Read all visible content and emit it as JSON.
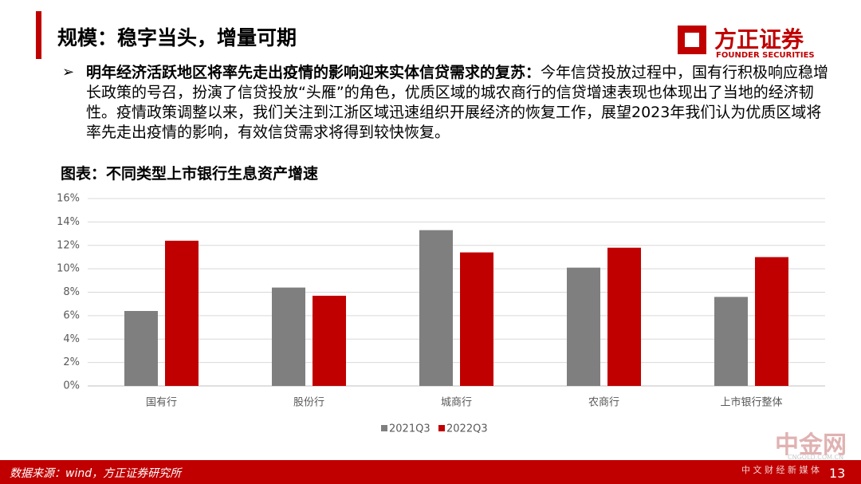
{
  "header": {
    "title": "规模：稳字当头，增量可期",
    "logo_name": "方正证券",
    "logo_sub": "FOUNDER SECURITIES"
  },
  "bullet": {
    "lead": "明年经济活跃地区将率先走出疫情的影响迎来实体信贷需求的复苏：",
    "text": "今年信贷投放过程中，国有行积极响应稳增长政策的号召，扮演了信贷投放“头雁”的角色，优质区域的城农商行的信贷增速表现也体现出了当地的经济韧性。疫情政策调整以来，我们关注到江浙区域迅速组织开展经济的恢复工作，展望2023年我们认为优质区域将率先走出疫情的影响，有效信贷需求将得到较快恢复。"
  },
  "chart_data": {
    "type": "bar",
    "title": "图表：不同类型上市银行生息资产增速",
    "categories": [
      "国有行",
      "股份行",
      "城商行",
      "农商行",
      "上市银行整体"
    ],
    "series": [
      {
        "name": "2021Q3",
        "color": "#7f7f7f",
        "values": [
          6.4,
          8.4,
          13.3,
          10.1,
          7.6
        ]
      },
      {
        "name": "2022Q3",
        "color": "#c00000",
        "values": [
          12.4,
          7.7,
          11.4,
          11.8,
          11.0
        ]
      }
    ],
    "ylim": [
      0,
      16
    ],
    "yticks": [
      {
        "value": 0,
        "label": "0%"
      },
      {
        "value": 2,
        "label": "2%"
      },
      {
        "value": 4,
        "label": "4%"
      },
      {
        "value": 6,
        "label": "6%"
      },
      {
        "value": 8,
        "label": "8%"
      },
      {
        "value": 10,
        "label": "10%"
      },
      {
        "value": 12,
        "label": "12%"
      },
      {
        "value": 14,
        "label": "14%"
      },
      {
        "value": 16,
        "label": "16%"
      }
    ],
    "grid": true,
    "legend": "bottom"
  },
  "footer": {
    "source": "数据来源：wind，方正证券研究所",
    "page": "13"
  },
  "watermark": {
    "name": "中金网",
    "site": "CNGOLD.COM.CN",
    "slogan": "中 文 财 经 新 媒 体"
  }
}
